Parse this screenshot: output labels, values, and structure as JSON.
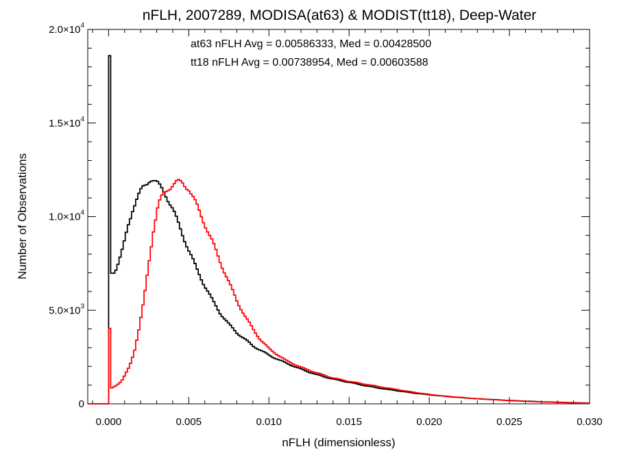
{
  "chart_data": {
    "type": "line",
    "title": "nFLH, 2007289, MODISA(at63) & MODIST(tt18), Deep-Water",
    "xlabel": "nFLH (dimensionless)",
    "ylabel": "Number of Observations",
    "xlim": [
      -0.0013,
      0.03
    ],
    "ylim": [
      0,
      20000
    ],
    "x_ticks": [
      0.0,
      0.005,
      0.01,
      0.015,
      0.02,
      0.025,
      0.03
    ],
    "x_tick_labels": [
      "0.000",
      "0.005",
      "0.010",
      "0.015",
      "0.020",
      "0.025",
      "0.030"
    ],
    "y_ticks": [
      {
        "value": 0,
        "mantissa": "0",
        "exp": ""
      },
      {
        "value": 5000,
        "mantissa": "5.0×10",
        "exp": "3"
      },
      {
        "value": 10000,
        "mantissa": "1.0×10",
        "exp": "4"
      },
      {
        "value": 15000,
        "mantissa": "1.5×10",
        "exp": "4"
      },
      {
        "value": 20000,
        "mantissa": "2.0×10",
        "exp": "4"
      }
    ],
    "annotations": [
      {
        "text": "at63 nFLH Avg = 0.00586333, Med = 0.00428500",
        "color": "#000000"
      },
      {
        "text": "tt18 nFLH Avg = 0.00738954, Med = 0.00603588",
        "color": "#ff0000"
      }
    ],
    "grid": false,
    "series": [
      {
        "color": "#000000",
        "x": [
          0.0,
          5e-05,
          0.0002,
          0.0004,
          0.0006,
          0.0008,
          0.001,
          0.0012,
          0.0015,
          0.0018,
          0.0021,
          0.0024,
          0.0026,
          0.0028,
          0.003,
          0.0032,
          0.0035,
          0.004,
          0.0045,
          0.005,
          0.0055,
          0.006,
          0.0065,
          0.007,
          0.0075,
          0.008,
          0.009,
          0.01,
          0.011,
          0.012,
          0.013,
          0.014,
          0.015,
          0.016,
          0.017,
          0.018,
          0.019,
          0.02,
          0.021,
          0.022,
          0.023,
          0.025,
          0.027,
          0.029,
          0.03
        ],
        "y": [
          18600,
          8000,
          7000,
          7100,
          7500,
          8000,
          8700,
          9500,
          10400,
          11000,
          11500,
          11800,
          12050,
          11950,
          11800,
          11600,
          11300,
          10400,
          9300,
          8200,
          7200,
          6300,
          5500,
          4800,
          4250,
          3800,
          3100,
          2600,
          2200,
          1850,
          1550,
          1320,
          1150,
          970,
          820,
          700,
          580,
          480,
          400,
          330,
          270,
          180,
          110,
          60,
          40
        ]
      },
      {
        "color": "#ff0000",
        "x": [
          0.0,
          5e-05,
          0.0002,
          0.0005,
          0.0008,
          0.001,
          0.0013,
          0.0016,
          0.0019,
          0.0022,
          0.0025,
          0.0028,
          0.0031,
          0.0034,
          0.0037,
          0.004,
          0.0043,
          0.0046,
          0.005,
          0.0055,
          0.006,
          0.0065,
          0.007,
          0.0075,
          0.008,
          0.0085,
          0.009,
          0.0095,
          0.01,
          0.011,
          0.012,
          0.013,
          0.014,
          0.015,
          0.016,
          0.017,
          0.018,
          0.019,
          0.02,
          0.021,
          0.022,
          0.023,
          0.025,
          0.027,
          0.029,
          0.03
        ],
        "y": [
          4000,
          900,
          850,
          1000,
          1200,
          1500,
          2000,
          2800,
          4000,
          5500,
          7500,
          9300,
          10600,
          11200,
          11500,
          11700,
          11850,
          11800,
          11500,
          10600,
          9600,
          8600,
          7500,
          6500,
          5500,
          4700,
          4000,
          3400,
          2950,
          2350,
          1950,
          1650,
          1380,
          1200,
          1050,
          900,
          760,
          620,
          500,
          410,
          340,
          270,
          170,
          100,
          50,
          30
        ]
      }
    ]
  }
}
